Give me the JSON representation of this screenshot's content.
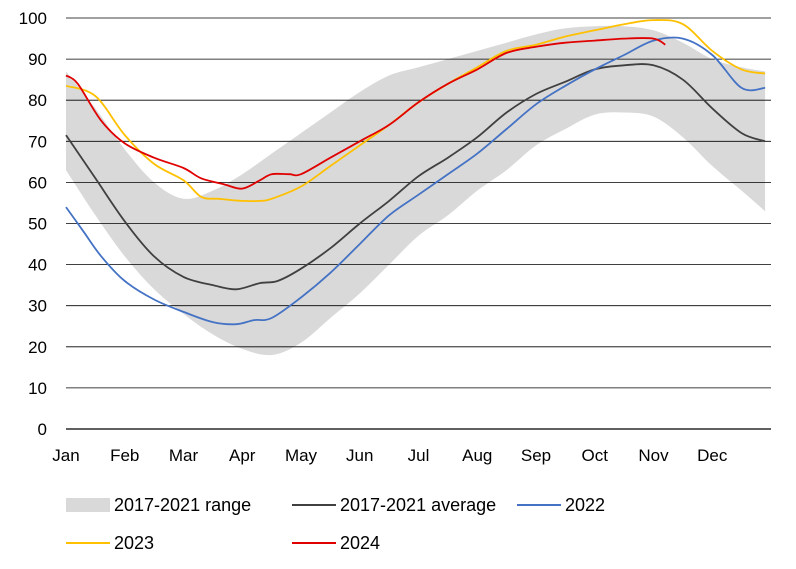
{
  "chart_data": {
    "type": "line",
    "title": "",
    "xlabel": "",
    "ylabel": "",
    "ylim": [
      0,
      100
    ],
    "yticks": [
      "0",
      "10",
      "20",
      "30",
      "40",
      "50",
      "60",
      "70",
      "80",
      "90",
      "100"
    ],
    "xticks": [
      "Jan",
      "Feb",
      "Mar",
      "Apr",
      "May",
      "Jun",
      "Jul",
      "Aug",
      "Sep",
      "Oct",
      "Nov",
      "Dec"
    ],
    "grid": "horizontal",
    "legend_position": "bottom",
    "colors": {
      "range": "#d9d9d9",
      "average": "#404040",
      "y2022": "#4472c4",
      "y2023": "#ffc000",
      "y2024": "#e00000",
      "grid": "#000000"
    },
    "series": [
      {
        "name": "2017-2021 range",
        "kind": "band",
        "x": [
          0,
          0.5,
          1,
          1.5,
          2,
          2.5,
          3,
          3.5,
          4,
          4.5,
          5,
          5.5,
          6,
          6.5,
          7,
          7.5,
          8,
          8.5,
          9,
          9.5,
          10,
          10.5,
          11,
          11.5,
          11.9
        ],
        "low": [
          63,
          52,
          42,
          34,
          28,
          23,
          19.5,
          18,
          21,
          27,
          33,
          40,
          47,
          52,
          58,
          63,
          69,
          73,
          76.5,
          77,
          76,
          71,
          64,
          58,
          53
        ],
        "high": [
          87,
          78,
          68,
          60,
          56,
          58,
          62,
          67,
          72,
          77,
          82,
          86,
          88,
          90,
          92,
          94,
          96,
          97.5,
          98,
          98,
          97,
          94,
          90,
          88,
          87
        ]
      },
      {
        "name": "2017-2021 average",
        "x": [
          0,
          0.5,
          1,
          1.5,
          2,
          2.5,
          2.9,
          3.3,
          3.6,
          4,
          4.5,
          5,
          5.5,
          6,
          6.5,
          7,
          7.5,
          8,
          8.5,
          9,
          9.5,
          10,
          10.5,
          11,
          11.5,
          11.9
        ],
        "values": [
          71.5,
          61,
          50.5,
          42,
          37,
          35,
          34,
          35.5,
          36,
          39,
          44,
          50,
          55.5,
          61.5,
          66,
          71,
          77,
          81.5,
          84.5,
          87.5,
          88.5,
          88.5,
          85,
          78,
          72,
          70
        ]
      },
      {
        "name": "2022",
        "x": [
          0,
          0.3,
          0.6,
          1,
          1.5,
          2,
          2.5,
          2.9,
          3.2,
          3.5,
          4,
          4.5,
          5,
          5.5,
          6,
          6.5,
          7,
          7.5,
          8,
          8.5,
          9,
          9.5,
          10,
          10.5,
          11,
          11.5,
          11.9
        ],
        "values": [
          54,
          48,
          42,
          36,
          31.5,
          28.5,
          26,
          25.5,
          26.5,
          27,
          32,
          38,
          45,
          52,
          57,
          62,
          67,
          73,
          79,
          83.5,
          87.5,
          91,
          94.5,
          95,
          91,
          83,
          83
        ]
      },
      {
        "name": "2023",
        "x": [
          0,
          0.5,
          1,
          1.5,
          2,
          2.3,
          2.6,
          3,
          3.3,
          3.5,
          4,
          4.5,
          5,
          5.5,
          6,
          6.5,
          7,
          7.5,
          8,
          8.5,
          9,
          9.5,
          10,
          10.5,
          11,
          11.5,
          11.9
        ],
        "values": [
          83.5,
          81,
          71.5,
          64.5,
          60.5,
          56.5,
          56,
          55.5,
          55.5,
          56,
          59,
          64,
          69,
          74,
          79.5,
          84,
          88,
          92,
          93.5,
          95.5,
          97,
          98.5,
          99.5,
          98.5,
          92,
          87.5,
          86.5
        ]
      },
      {
        "name": "2024",
        "x": [
          0,
          0.2,
          0.6,
          1,
          1.5,
          2,
          2.3,
          2.7,
          3,
          3.3,
          3.5,
          3.8,
          4,
          4.5,
          5,
          5.5,
          6,
          6.5,
          7,
          7.5,
          8,
          8.5,
          9,
          9.5,
          10,
          10.2
        ],
        "values": [
          86,
          84,
          75,
          69.5,
          66,
          63.5,
          61,
          59.5,
          58.5,
          60.5,
          62,
          62,
          62,
          66,
          70,
          74,
          79.5,
          84,
          87.5,
          91.5,
          93,
          94,
          94.5,
          95,
          95,
          93.5
        ]
      }
    ],
    "legend": [
      {
        "label": "2017-2021 range",
        "swatch": "band",
        "color": "#d9d9d9"
      },
      {
        "label": "2017-2021 average",
        "swatch": "line",
        "color": "#404040"
      },
      {
        "label": "2022",
        "swatch": "line",
        "color": "#4472c4"
      },
      {
        "label": "2023",
        "swatch": "line",
        "color": "#ffc000"
      },
      {
        "label": "2024",
        "swatch": "line",
        "color": "#e00000"
      }
    ]
  }
}
